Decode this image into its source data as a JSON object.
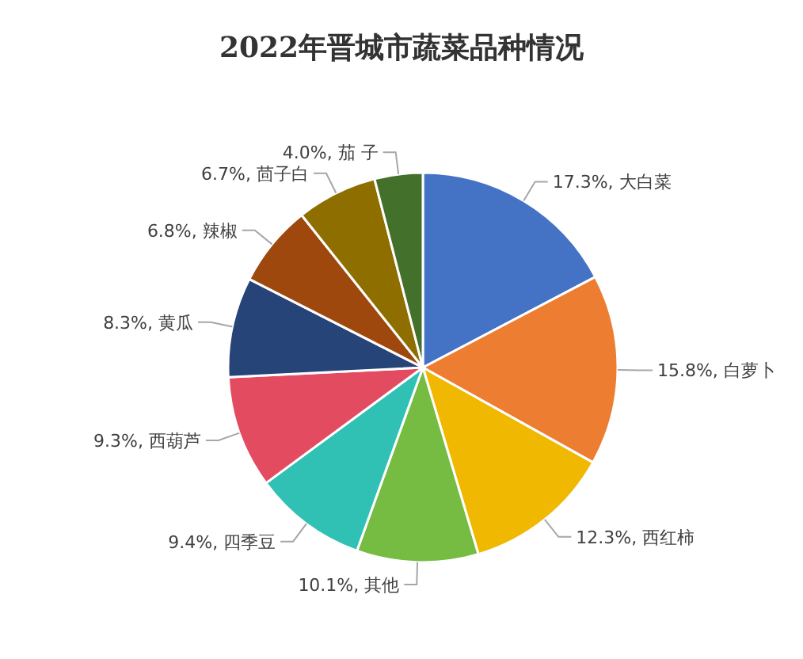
{
  "chart_data": {
    "type": "pie",
    "title": "2022年晋城市蔬菜品种情况",
    "categories": [
      "大白菜",
      "白萝卜",
      "西红柿",
      "其他",
      "四季豆",
      "西葫芦",
      "黄瓜",
      "辣椒",
      "茴子白",
      "茄 子"
    ],
    "values": [
      17.3,
      15.8,
      12.3,
      10.1,
      9.4,
      9.3,
      8.3,
      6.8,
      6.7,
      4.0
    ],
    "value_labels": [
      "17.3%",
      "15.8%",
      "12.3%",
      "10.1%",
      "9.4%",
      "9.3%",
      "8.3%",
      "6.8%",
      "6.7%",
      "4.0%"
    ],
    "colors": [
      "#4472c4",
      "#ed7d31",
      "#f0b800",
      "#77bc42",
      "#30c0b4",
      "#e34c60",
      "#264478",
      "#9e480e",
      "#8f6e00",
      "#43702b"
    ]
  }
}
